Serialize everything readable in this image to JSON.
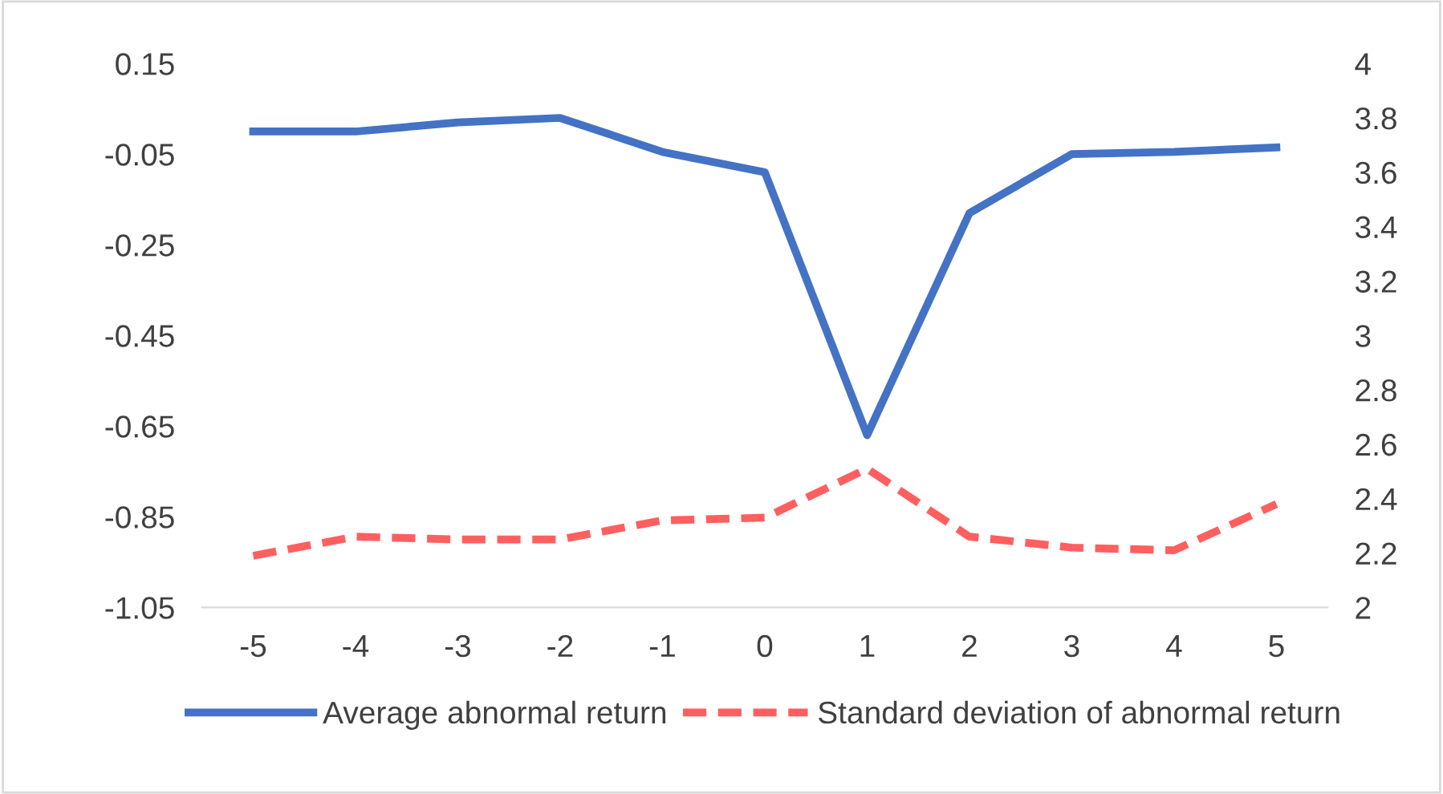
{
  "chart_data": {
    "type": "line",
    "categories": [
      "-5",
      "-4",
      "-3",
      "-2",
      "-1",
      "0",
      "1",
      "2",
      "3",
      "4",
      "5"
    ],
    "series": [
      {
        "name": "Average abnormal return",
        "color": "#4472c4",
        "line_style": "solid",
        "values": [
          0.0,
          0.0,
          0.02,
          0.03,
          -0.045,
          -0.09,
          -0.67,
          -0.18,
          -0.05,
          -0.045,
          -0.035
        ]
      },
      {
        "name": "Standard deviation of abnormal return",
        "color": "#ff5f5f",
        "line_style": "dashed",
        "axis": "y2",
        "values": [
          2.19,
          2.26,
          2.25,
          2.25,
          2.32,
          2.33,
          2.51,
          2.26,
          2.22,
          2.21,
          2.38
        ]
      }
    ],
    "ylim": [
      -1.05,
      0.15
    ],
    "yticks": [
      0.15,
      -0.05,
      -0.25,
      -0.45,
      -0.65,
      -0.85,
      -1.05
    ],
    "y2lim": [
      2,
      4
    ],
    "y2ticks": [
      2,
      {
        "value": 2.2,
        "label": "2.2"
      },
      {
        "value": 2.4,
        "label": "2.4"
      },
      {
        "value": 2.6,
        "label": "2.6"
      },
      {
        "value": 2.8,
        "label": "2.8"
      },
      3,
      {
        "value": 3.2,
        "label": "3.2"
      },
      {
        "value": 3.4,
        "label": "3.4"
      },
      {
        "value": 3.6,
        "label": "3.6"
      },
      {
        "value": 3.8,
        "label": "3.8"
      },
      4
    ],
    "grid": false,
    "legend": "bottom",
    "marker": "none"
  }
}
